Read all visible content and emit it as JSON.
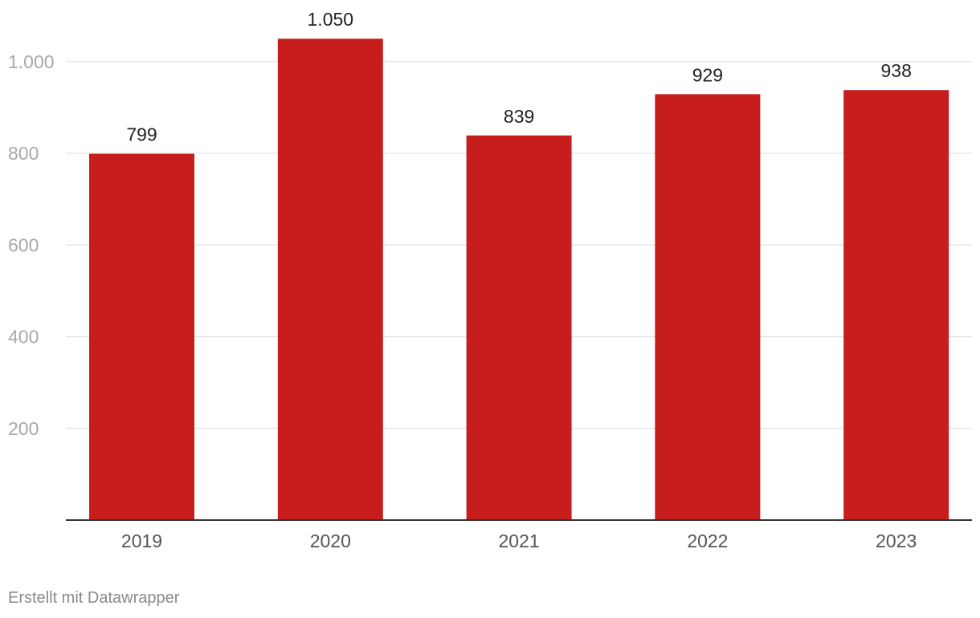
{
  "chart_data": {
    "type": "bar",
    "categories": [
      "2019",
      "2020",
      "2021",
      "2022",
      "2023"
    ],
    "values": [
      799,
      1050,
      839,
      929,
      938
    ],
    "data_labels": [
      "799",
      "1.050",
      "839",
      "929",
      "938"
    ],
    "yticks": [
      200,
      400,
      600,
      800,
      1000
    ],
    "ytick_labels": [
      "200",
      "400",
      "600",
      "800",
      "1.000"
    ],
    "ylim": [
      0,
      1100
    ],
    "grid": true,
    "legend": "none",
    "colors": {
      "bar": "#c71e1d",
      "grid": "#e0e0e0",
      "axis": "#333333",
      "ytick_text": "#a8a8a8",
      "xtick_text": "#555555",
      "data_label_text": "#222222"
    }
  },
  "footer": {
    "credit": "Erstellt mit Datawrapper",
    "color": "#8a8a8a"
  }
}
